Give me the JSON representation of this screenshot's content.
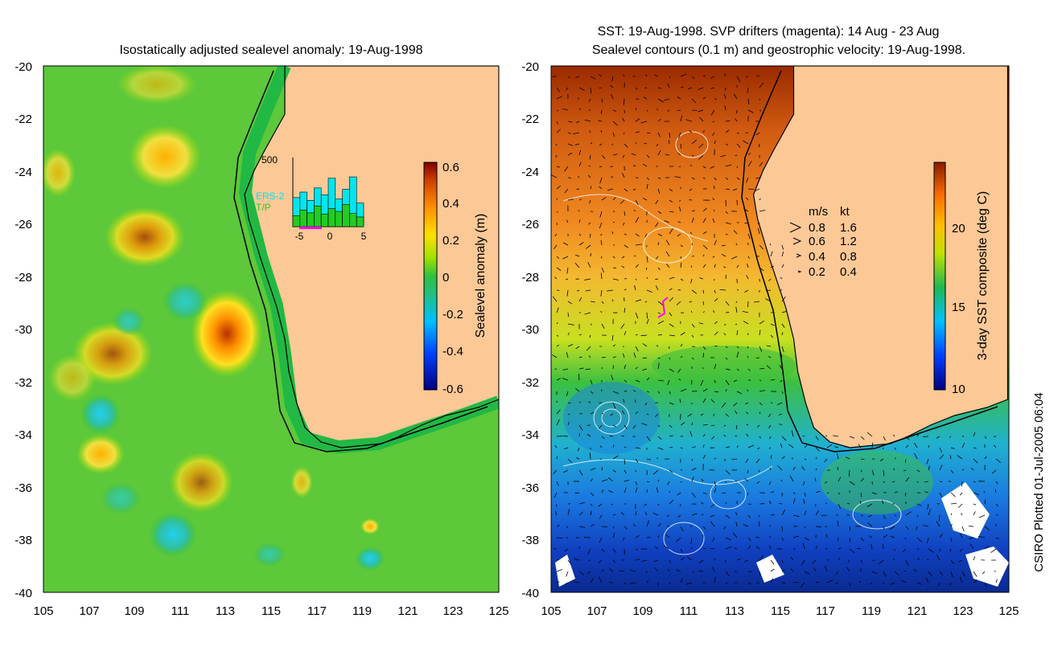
{
  "left_panel": {
    "title": "Isostatically adjusted sealevel anomaly: 19-Aug-1998",
    "lat_ticks": [
      "-20",
      "-22",
      "-24",
      "-26",
      "-28",
      "-30",
      "-32",
      "-34",
      "-36",
      "-38",
      "-40"
    ],
    "lon_ticks": [
      "105",
      "107",
      "109",
      "111",
      "113",
      "115",
      "117",
      "119",
      "121",
      "123",
      "125"
    ],
    "colorbar": {
      "label": "Sealevel anomaly (m)",
      "ticks": [
        "0.6",
        "0.4",
        "0.2",
        "0",
        "-0.2",
        "-0.4",
        "-0.6"
      ]
    },
    "inset": {
      "ymax_label": "500",
      "x_ticks": [
        "-5",
        "0",
        "5"
      ],
      "legend_ers": "ERS-2",
      "legend_tp": "T/P",
      "ers_color": "#00e5ee",
      "tp_color": "#22cc22",
      "days": [
        -5,
        -4,
        -3,
        -2,
        -1,
        0,
        1,
        2,
        3,
        4
      ],
      "tp_counts": [
        80,
        120,
        100,
        150,
        90,
        130,
        110,
        160,
        95,
        70
      ],
      "ers_counts": [
        210,
        250,
        190,
        280,
        230,
        350,
        200,
        270,
        360,
        170
      ]
    }
  },
  "right_panel": {
    "title_line1": "SST: 19-Aug-1998. SVP drifters (magenta): 14 Aug - 23 Aug",
    "title_line2": "Sealevel contours (0.1 m) and geostrophic velocity: 19-Aug-1998.",
    "lat_ticks": [
      "-20",
      "-22",
      "-24",
      "-26",
      "-28",
      "-30",
      "-32",
      "-34",
      "-36",
      "-38",
      "-40"
    ],
    "lon_ticks": [
      "105",
      "107",
      "109",
      "111",
      "113",
      "115",
      "117",
      "119",
      "121",
      "123",
      "125"
    ],
    "colorbar": {
      "label": "3-day SST composite (deg C)",
      "ticks": [
        "20",
        "15",
        "10"
      ]
    },
    "velocity_key": {
      "header_ms": "m/s",
      "header_kt": "kt",
      "rows": [
        {
          "ms": "0.8",
          "kt": "1.6"
        },
        {
          "ms": "0.6",
          "kt": "1.2"
        },
        {
          "ms": "0.4",
          "kt": "0.8"
        },
        {
          "ms": "0.2",
          "kt": "0.4"
        }
      ]
    },
    "drifter_color": "#ff00ff"
  },
  "credit": "CSIRO Plotted 01-Jul-2005 06:04",
  "colors": {
    "land": "#fcc896",
    "shelf_green": "#22b844",
    "coast_line": "#000000"
  }
}
